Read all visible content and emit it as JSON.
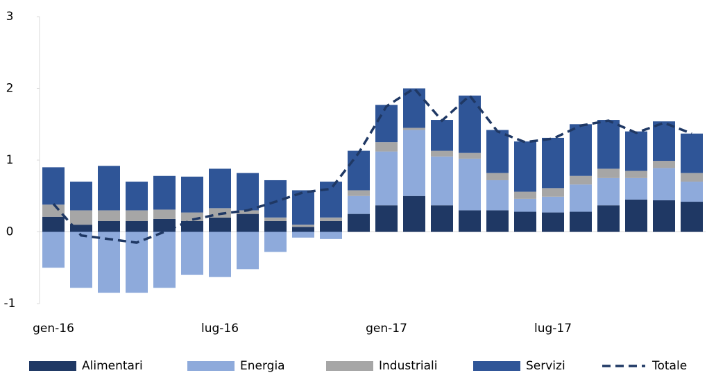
{
  "chart_data": {
    "type": "bar",
    "stacked": true,
    "categories": [
      "gen-16",
      null,
      null,
      null,
      null,
      null,
      "lug-16",
      null,
      null,
      null,
      null,
      null,
      "gen-17",
      null,
      null,
      null,
      null,
      null,
      "lug-17",
      null,
      null,
      null,
      null,
      null
    ],
    "series": [
      {
        "name": "Alimentari",
        "color": "#1f3864",
        "values": [
          0.21,
          0.1,
          0.15,
          0.15,
          0.18,
          0.15,
          0.2,
          0.25,
          0.15,
          0.07,
          0.15,
          0.25,
          0.37,
          0.5,
          0.37,
          0.3,
          0.3,
          0.28,
          0.27,
          0.28,
          0.37,
          0.45,
          0.44,
          0.42
        ]
      },
      {
        "name": "Energia",
        "color": "#8eaadb",
        "values": [
          -0.5,
          -0.78,
          -0.85,
          -0.85,
          -0.78,
          -0.6,
          -0.63,
          -0.52,
          -0.28,
          -0.08,
          -0.1,
          0.25,
          0.75,
          0.92,
          0.68,
          0.72,
          0.42,
          0.18,
          0.22,
          0.38,
          0.38,
          0.3,
          0.45,
          0.28
        ]
      },
      {
        "name": "Industriali",
        "color": "#a6a6a6",
        "values": [
          0.17,
          0.2,
          0.15,
          0.15,
          0.13,
          0.12,
          0.13,
          0.05,
          0.05,
          0.03,
          0.05,
          0.08,
          0.13,
          0.03,
          0.08,
          0.08,
          0.1,
          0.1,
          0.12,
          0.12,
          0.13,
          0.1,
          0.1,
          0.12
        ]
      },
      {
        "name": "Servizi",
        "color": "#2f5597",
        "values": [
          0.52,
          0.4,
          0.62,
          0.4,
          0.47,
          0.5,
          0.55,
          0.52,
          0.52,
          0.48,
          0.5,
          0.55,
          0.52,
          0.55,
          0.43,
          0.8,
          0.6,
          0.7,
          0.7,
          0.72,
          0.68,
          0.55,
          0.55,
          0.55
        ]
      },
      {
        "name": "Totale",
        "type": "line",
        "dashed": true,
        "color": "#1f3864",
        "values": [
          0.39,
          -0.05,
          -0.1,
          -0.15,
          0.0,
          0.17,
          0.25,
          0.3,
          0.42,
          0.55,
          0.6,
          1.1,
          1.75,
          2.0,
          1.55,
          1.9,
          1.4,
          1.25,
          1.3,
          1.48,
          1.55,
          1.38,
          1.52,
          1.37
        ]
      }
    ],
    "ylim": [
      -1,
      3
    ],
    "yticks": [
      -1,
      0,
      1,
      2,
      3
    ],
    "grid": false,
    "legend": "bottom"
  }
}
